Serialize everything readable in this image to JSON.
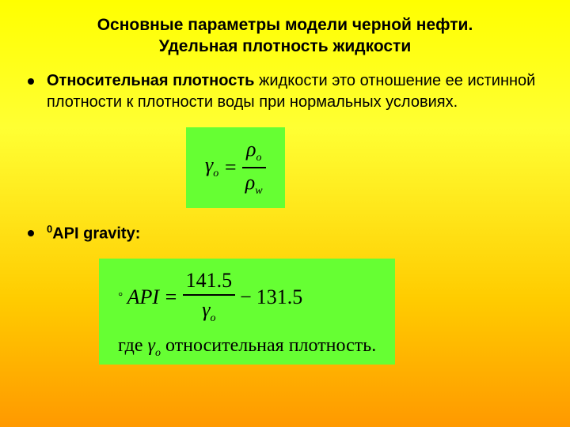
{
  "title_line1": "Основные параметры модели черной нефти.",
  "title_line2": "Удельная плотность жидкости",
  "bullet1_bold": "Относительная плотность",
  "bullet1_rest": " жидкости это отношение ее истинной плотности к плотности воды при нормальных условиях.",
  "formula1": {
    "gamma": "γ",
    "gamma_sub": "o",
    "eq": "=",
    "rho": "ρ",
    "rho_num_sub": "o",
    "rho_den_sub": "w"
  },
  "bullet2_sup": "0",
  "bullet2_text": "API gravity:",
  "formula2": {
    "deg": "°",
    "api": "API",
    "eq": "=",
    "num": "141.5",
    "den_sym": "γ",
    "den_sub": "o",
    "minus": "−",
    "const": "131.5",
    "where_text": "где",
    "gamma": "γ",
    "gamma_sub": "o",
    "desc": " относительная плотность."
  },
  "colors": {
    "formula_bg": "#66ff33"
  }
}
